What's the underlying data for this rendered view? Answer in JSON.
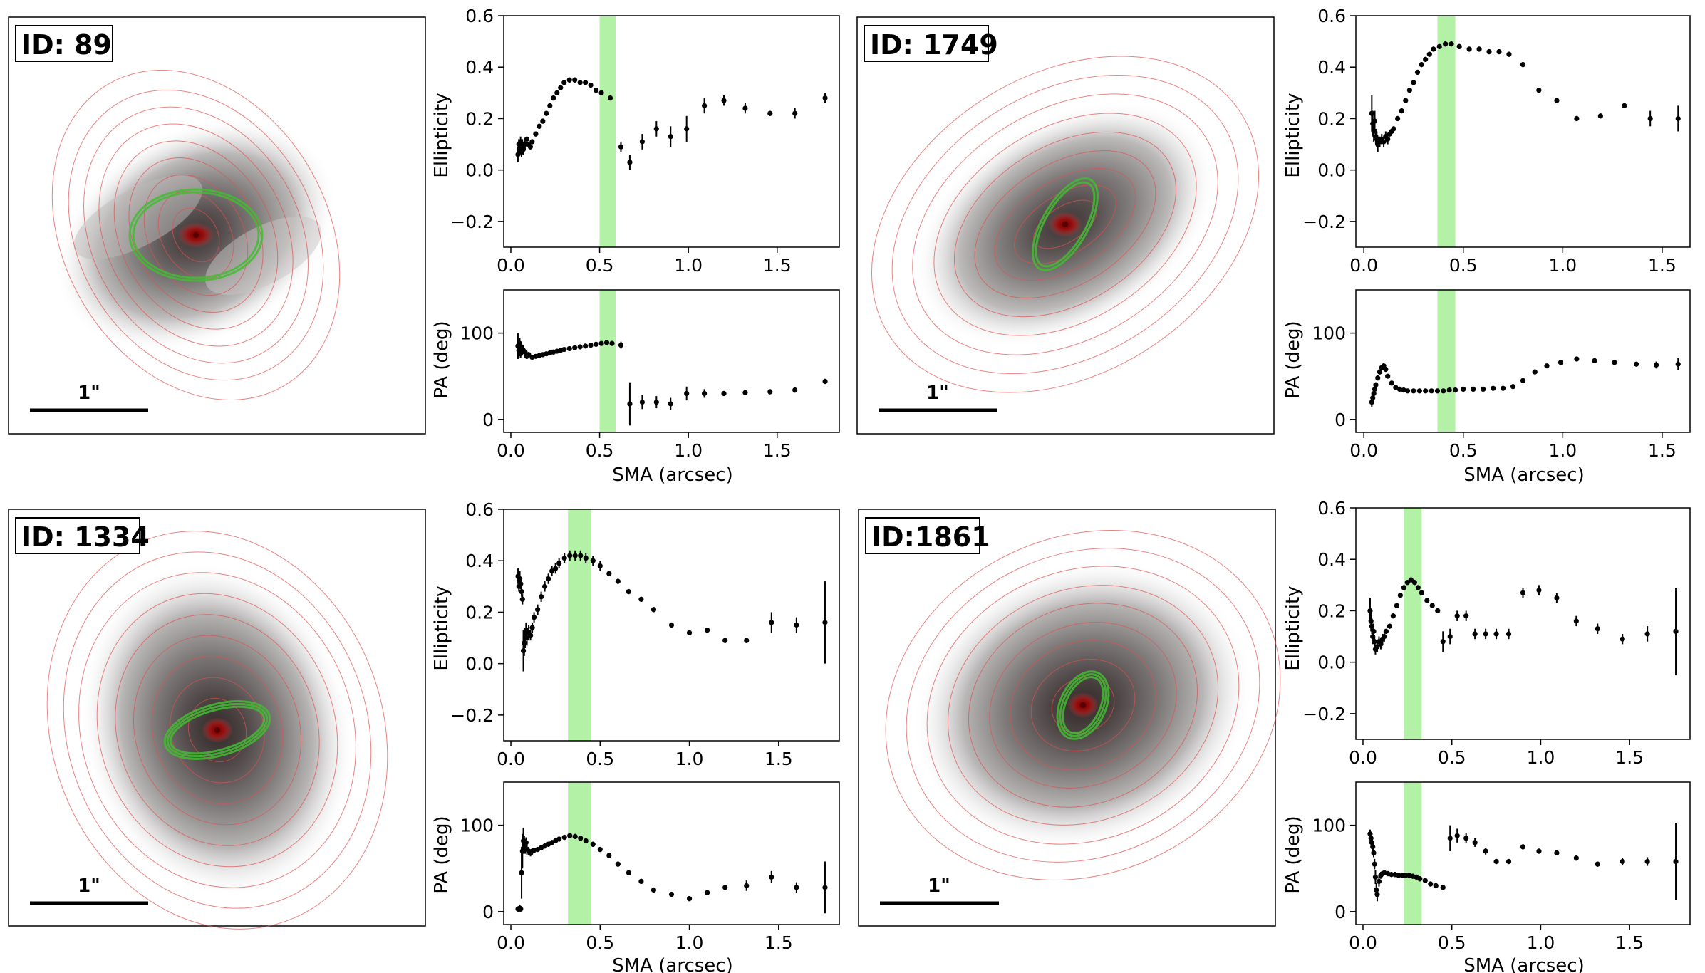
{
  "figure": {
    "scale_bar_label": "1\"",
    "xlabel": "SMA (arcsec)",
    "ylabel_top": "Ellipticity",
    "ylabel_bottom": "PA (deg)"
  },
  "colors": {
    "points": "#000000",
    "bar_band": "#99ee88",
    "isophote": "#e05050",
    "bar_ellipse": "#44bb33",
    "core": "#8a0000"
  },
  "chart_data": [
    {
      "id_label": "ID: 89",
      "type": "scatter",
      "bar_band": [
        0.5,
        0.59
      ],
      "xlim": [
        -0.04,
        1.85
      ],
      "xticks": [
        "0.0",
        "0.5",
        "1.0",
        "1.5"
      ],
      "ellipticity": {
        "ylim": [
          -0.3,
          0.6
        ],
        "yticks": [
          "−0.2",
          "0.0",
          "0.2",
          "0.4",
          "0.6"
        ],
        "x": [
          0.04,
          0.045,
          0.05,
          0.055,
          0.06,
          0.065,
          0.07,
          0.08,
          0.09,
          0.1,
          0.11,
          0.12,
          0.14,
          0.16,
          0.18,
          0.2,
          0.22,
          0.24,
          0.26,
          0.28,
          0.3,
          0.33,
          0.36,
          0.39,
          0.42,
          0.45,
          0.48,
          0.51,
          0.56,
          0.62,
          0.67,
          0.74,
          0.82,
          0.9,
          0.99,
          1.09,
          1.2,
          1.32,
          1.46,
          1.6,
          1.77
        ],
        "y": [
          0.06,
          0.1,
          0.08,
          0.11,
          0.07,
          0.1,
          0.08,
          0.1,
          0.12,
          0.1,
          0.09,
          0.11,
          0.14,
          0.17,
          0.19,
          0.22,
          0.25,
          0.28,
          0.3,
          0.32,
          0.34,
          0.35,
          0.35,
          0.34,
          0.34,
          0.33,
          0.31,
          0.3,
          0.28,
          0.09,
          0.03,
          0.11,
          0.16,
          0.13,
          0.16,
          0.25,
          0.27,
          0.24,
          0.22,
          0.22,
          0.28
        ],
        "err": [
          0.03,
          0.02,
          0.02,
          0.02,
          0.02,
          0.02,
          0.02,
          0.02,
          0.01,
          0.01,
          0.01,
          0.01,
          0.01,
          0.01,
          0.01,
          0.01,
          0.01,
          0.01,
          0.01,
          0.01,
          0.01,
          0.01,
          0.01,
          0.01,
          0.01,
          0.01,
          0.01,
          0.01,
          0.01,
          0.02,
          0.03,
          0.03,
          0.03,
          0.04,
          0.05,
          0.03,
          0.02,
          0.02,
          0.01,
          0.02,
          0.02
        ]
      },
      "pa": {
        "ylim": [
          -15,
          150
        ],
        "yticks": [
          "0",
          "100"
        ],
        "x": [
          0.04,
          0.045,
          0.05,
          0.055,
          0.06,
          0.07,
          0.08,
          0.09,
          0.1,
          0.12,
          0.14,
          0.16,
          0.18,
          0.2,
          0.22,
          0.24,
          0.26,
          0.28,
          0.3,
          0.33,
          0.36,
          0.39,
          0.42,
          0.45,
          0.48,
          0.51,
          0.54,
          0.57,
          0.62,
          0.67,
          0.74,
          0.82,
          0.9,
          0.99,
          1.09,
          1.2,
          1.32,
          1.46,
          1.6,
          1.77
        ],
        "y": [
          85,
          80,
          88,
          76,
          84,
          80,
          78,
          73,
          75,
          72,
          73,
          74,
          75,
          76,
          77,
          78,
          79,
          80,
          81,
          82,
          83,
          84,
          85,
          86,
          87,
          88,
          89,
          88,
          86,
          18,
          20,
          20,
          18,
          30,
          30,
          30,
          31,
          32,
          34,
          44
        ],
        "err": [
          15,
          8,
          6,
          5,
          4,
          4,
          3,
          3,
          3,
          2,
          2,
          2,
          2,
          2,
          2,
          2,
          2,
          2,
          2,
          2,
          2,
          2,
          2,
          2,
          2,
          2,
          2,
          2,
          4,
          25,
          8,
          7,
          7,
          8,
          5,
          3,
          3,
          3,
          3,
          3
        ]
      }
    },
    {
      "id_label": "ID: 1749",
      "type": "scatter",
      "bar_band": [
        0.37,
        0.46
      ],
      "xlim": [
        -0.04,
        1.64
      ],
      "xticks": [
        "0.0",
        "0.5",
        "1.0",
        "1.5"
      ],
      "ellipticity": {
        "ylim": [
          -0.3,
          0.6
        ],
        "yticks": [
          "−0.2",
          "0.0",
          "0.2",
          "0.4",
          "0.6"
        ],
        "x": [
          0.04,
          0.045,
          0.05,
          0.055,
          0.06,
          0.065,
          0.07,
          0.08,
          0.09,
          0.1,
          0.11,
          0.12,
          0.13,
          0.14,
          0.15,
          0.17,
          0.19,
          0.21,
          0.23,
          0.25,
          0.27,
          0.29,
          0.31,
          0.33,
          0.35,
          0.38,
          0.41,
          0.44,
          0.48,
          0.53,
          0.58,
          0.63,
          0.68,
          0.73,
          0.8,
          0.88,
          0.97,
          1.07,
          1.19,
          1.31,
          1.44,
          1.58
        ],
        "y": [
          0.22,
          0.18,
          0.15,
          0.19,
          0.13,
          0.12,
          0.1,
          0.11,
          0.12,
          0.11,
          0.13,
          0.12,
          0.14,
          0.15,
          0.16,
          0.2,
          0.23,
          0.27,
          0.31,
          0.34,
          0.38,
          0.41,
          0.43,
          0.45,
          0.47,
          0.48,
          0.49,
          0.49,
          0.48,
          0.47,
          0.47,
          0.46,
          0.46,
          0.45,
          0.41,
          0.31,
          0.27,
          0.2,
          0.21,
          0.25,
          0.2,
          0.2
        ],
        "err": [
          0.07,
          0.05,
          0.04,
          0.04,
          0.03,
          0.03,
          0.03,
          0.02,
          0.02,
          0.02,
          0.02,
          0.02,
          0.01,
          0.01,
          0.01,
          0.01,
          0.01,
          0.01,
          0.01,
          0.01,
          0.01,
          0.01,
          0.01,
          0.01,
          0.01,
          0.01,
          0.01,
          0.01,
          0.01,
          0.01,
          0.01,
          0.01,
          0.01,
          0.01,
          0.01,
          0.01,
          0.01,
          0.01,
          0.01,
          0.01,
          0.03,
          0.05
        ]
      },
      "pa": {
        "ylim": [
          -15,
          150
        ],
        "yticks": [
          "0",
          "100"
        ],
        "x": [
          0.04,
          0.045,
          0.05,
          0.055,
          0.06,
          0.07,
          0.08,
          0.09,
          0.1,
          0.11,
          0.12,
          0.14,
          0.16,
          0.18,
          0.2,
          0.22,
          0.25,
          0.28,
          0.31,
          0.34,
          0.37,
          0.4,
          0.43,
          0.46,
          0.5,
          0.55,
          0.6,
          0.65,
          0.7,
          0.75,
          0.8,
          0.86,
          0.92,
          0.99,
          1.07,
          1.16,
          1.26,
          1.37,
          1.47,
          1.58
        ],
        "y": [
          20,
          25,
          30,
          35,
          40,
          48,
          55,
          60,
          62,
          58,
          50,
          42,
          37,
          35,
          34,
          33,
          33,
          33,
          33,
          33,
          33,
          33,
          34,
          34,
          35,
          35,
          35,
          36,
          36,
          38,
          45,
          55,
          62,
          66,
          70,
          68,
          66,
          64,
          63,
          64
        ],
        "err": [
          6,
          5,
          4,
          4,
          3,
          3,
          3,
          3,
          3,
          3,
          2,
          2,
          2,
          2,
          2,
          2,
          2,
          2,
          2,
          2,
          2,
          2,
          2,
          2,
          2,
          2,
          2,
          2,
          2,
          2,
          2,
          2,
          2,
          2,
          2,
          2,
          2,
          2,
          4,
          7
        ]
      }
    },
    {
      "id_label": "ID: 1334",
      "type": "scatter",
      "bar_band": [
        0.32,
        0.45
      ],
      "xlim": [
        -0.04,
        1.84
      ],
      "xticks": [
        "0.0",
        "0.5",
        "1.0",
        "1.5"
      ],
      "ellipticity": {
        "ylim": [
          -0.3,
          0.6
        ],
        "yticks": [
          "−0.2",
          "0.0",
          "0.2",
          "0.4",
          "0.6"
        ],
        "x": [
          0.04,
          0.045,
          0.05,
          0.055,
          0.06,
          0.065,
          0.07,
          0.075,
          0.08,
          0.085,
          0.09,
          0.1,
          0.11,
          0.12,
          0.13,
          0.15,
          0.17,
          0.19,
          0.21,
          0.23,
          0.25,
          0.27,
          0.3,
          0.33,
          0.36,
          0.39,
          0.42,
          0.46,
          0.5,
          0.55,
          0.6,
          0.66,
          0.73,
          0.8,
          0.9,
          1.0,
          1.1,
          1.2,
          1.32,
          1.46,
          1.6,
          1.76
        ],
        "y": [
          0.34,
          0.3,
          0.33,
          0.31,
          0.28,
          0.25,
          0.05,
          0.08,
          0.1,
          0.13,
          0.1,
          0.12,
          0.11,
          0.14,
          0.18,
          0.21,
          0.26,
          0.3,
          0.33,
          0.36,
          0.37,
          0.39,
          0.41,
          0.42,
          0.42,
          0.42,
          0.41,
          0.4,
          0.38,
          0.35,
          0.32,
          0.28,
          0.25,
          0.21,
          0.15,
          0.12,
          0.13,
          0.09,
          0.09,
          0.16,
          0.15,
          0.16
        ],
        "err": [
          0.03,
          0.02,
          0.03,
          0.02,
          0.02,
          0.02,
          0.08,
          0.05,
          0.04,
          0.03,
          0.03,
          0.03,
          0.02,
          0.02,
          0.02,
          0.02,
          0.02,
          0.02,
          0.02,
          0.02,
          0.02,
          0.02,
          0.02,
          0.02,
          0.02,
          0.02,
          0.02,
          0.02,
          0.02,
          0.01,
          0.01,
          0.01,
          0.01,
          0.01,
          0.01,
          0.01,
          0.01,
          0.01,
          0.01,
          0.04,
          0.03,
          0.16
        ]
      },
      "pa": {
        "ylim": [
          -15,
          150
        ],
        "yticks": [
          "0",
          "100"
        ],
        "x": [
          0.04,
          0.045,
          0.05,
          0.055,
          0.06,
          0.065,
          0.07,
          0.075,
          0.08,
          0.085,
          0.09,
          0.1,
          0.11,
          0.12,
          0.13,
          0.15,
          0.17,
          0.19,
          0.21,
          0.23,
          0.25,
          0.27,
          0.3,
          0.33,
          0.36,
          0.39,
          0.42,
          0.46,
          0.5,
          0.55,
          0.6,
          0.66,
          0.73,
          0.8,
          0.9,
          1.0,
          1.1,
          1.2,
          1.32,
          1.46,
          1.6,
          1.76
        ],
        "y": [
          3,
          3,
          4,
          3,
          45,
          70,
          82,
          78,
          75,
          80,
          72,
          70,
          68,
          70,
          71,
          72,
          74,
          76,
          78,
          80,
          82,
          84,
          86,
          88,
          87,
          85,
          82,
          78,
          72,
          65,
          55,
          45,
          35,
          25,
          20,
          15,
          22,
          28,
          30,
          40,
          28,
          28
        ],
        "err": [
          3,
          3,
          4,
          3,
          30,
          20,
          15,
          10,
          8,
          6,
          6,
          5,
          4,
          4,
          3,
          3,
          3,
          3,
          3,
          3,
          3,
          3,
          3,
          3,
          3,
          3,
          3,
          3,
          3,
          3,
          3,
          3,
          3,
          3,
          3,
          3,
          3,
          3,
          6,
          7,
          6,
          30
        ]
      }
    },
    {
      "id_label": "ID:1861",
      "type": "scatter",
      "bar_band": [
        0.23,
        0.33
      ],
      "xlim": [
        -0.04,
        1.84
      ],
      "xticks": [
        "0.0",
        "0.5",
        "1.0",
        "1.5"
      ],
      "ellipticity": {
        "ylim": [
          -0.3,
          0.6
        ],
        "yticks": [
          "−0.2",
          "0.0",
          "0.2",
          "0.4",
          "0.6"
        ],
        "x": [
          0.04,
          0.045,
          0.05,
          0.055,
          0.06,
          0.065,
          0.07,
          0.08,
          0.09,
          0.1,
          0.11,
          0.12,
          0.13,
          0.15,
          0.17,
          0.19,
          0.21,
          0.23,
          0.25,
          0.27,
          0.29,
          0.31,
          0.33,
          0.36,
          0.39,
          0.42,
          0.45,
          0.49,
          0.53,
          0.58,
          0.63,
          0.69,
          0.75,
          0.82,
          0.9,
          0.99,
          1.09,
          1.2,
          1.32,
          1.46,
          1.6,
          1.76
        ],
        "y": [
          0.2,
          0.16,
          0.14,
          0.1,
          0.12,
          0.08,
          0.05,
          0.06,
          0.08,
          0.07,
          0.09,
          0.1,
          0.12,
          0.14,
          0.18,
          0.22,
          0.26,
          0.29,
          0.31,
          0.32,
          0.31,
          0.29,
          0.27,
          0.24,
          0.22,
          0.2,
          0.08,
          0.1,
          0.18,
          0.18,
          0.11,
          0.11,
          0.11,
          0.11,
          0.27,
          0.28,
          0.25,
          0.16,
          0.13,
          0.09,
          0.11,
          0.12
        ],
        "err": [
          0.05,
          0.04,
          0.03,
          0.03,
          0.03,
          0.02,
          0.02,
          0.02,
          0.02,
          0.02,
          0.02,
          0.02,
          0.01,
          0.01,
          0.01,
          0.01,
          0.01,
          0.01,
          0.01,
          0.01,
          0.01,
          0.01,
          0.01,
          0.01,
          0.01,
          0.01,
          0.04,
          0.03,
          0.02,
          0.02,
          0.02,
          0.02,
          0.02,
          0.02,
          0.02,
          0.02,
          0.02,
          0.02,
          0.02,
          0.02,
          0.03,
          0.17
        ]
      },
      "pa": {
        "ylim": [
          -15,
          150
        ],
        "yticks": [
          "0",
          "100"
        ],
        "x": [
          0.04,
          0.045,
          0.05,
          0.055,
          0.06,
          0.065,
          0.07,
          0.075,
          0.08,
          0.09,
          0.1,
          0.11,
          0.12,
          0.14,
          0.16,
          0.18,
          0.2,
          0.22,
          0.24,
          0.26,
          0.28,
          0.3,
          0.32,
          0.35,
          0.38,
          0.41,
          0.45,
          0.49,
          0.53,
          0.58,
          0.63,
          0.69,
          0.75,
          0.82,
          0.9,
          0.99,
          1.09,
          1.2,
          1.32,
          1.46,
          1.6,
          1.76
        ],
        "y": [
          90,
          85,
          80,
          75,
          68,
          55,
          40,
          25,
          20,
          35,
          42,
          44,
          45,
          44,
          43,
          43,
          42,
          42,
          42,
          42,
          41,
          40,
          38,
          36,
          32,
          30,
          28,
          85,
          88,
          85,
          80,
          70,
          58,
          58,
          75,
          70,
          68,
          62,
          55,
          58,
          58,
          58
        ],
        "err": [
          5,
          5,
          5,
          5,
          5,
          6,
          8,
          8,
          8,
          6,
          4,
          3,
          3,
          3,
          3,
          3,
          3,
          3,
          3,
          3,
          3,
          3,
          3,
          3,
          3,
          3,
          3,
          15,
          8,
          6,
          5,
          4,
          3,
          3,
          3,
          3,
          3,
          3,
          3,
          4,
          5,
          45
        ]
      }
    }
  ]
}
